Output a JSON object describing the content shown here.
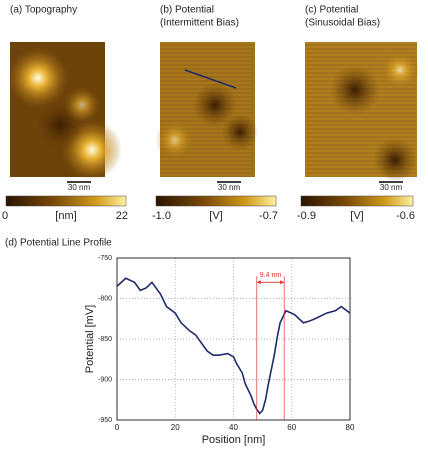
{
  "panels": [
    {
      "title": [
        "(a) Topography"
      ],
      "scale_bar": "30 nm",
      "colorbar": [
        "0",
        "[nm]",
        "22"
      ]
    },
    {
      "title": [
        "(b) Potential",
        "(Intermittent Bias)"
      ],
      "scale_bar": "30 nm",
      "colorbar": [
        "-1.0",
        "[V]",
        "-0.7"
      ]
    },
    {
      "title": [
        "(c) Potential",
        "(Sinusoidal Bias)"
      ],
      "scale_bar": "30 nm",
      "colorbar": [
        "-0.9",
        "[V]",
        "-0.6"
      ]
    }
  ],
  "chart_data": {
    "type": "line",
    "title": "(d) Potential Line Profile",
    "x_label": "Position [nm]",
    "y_label": "Potential [mV]",
    "xlim": [
      0,
      80
    ],
    "ylim": [
      -950,
      -750
    ],
    "xticks": [
      0,
      20,
      40,
      60,
      80
    ],
    "yticks": [
      -750,
      -800,
      -850,
      -900,
      -950
    ],
    "grid": true,
    "series": [
      {
        "color": "#1f2a6e",
        "x": [
          0,
          3,
          6,
          8,
          10,
          12,
          15,
          17,
          20,
          22,
          25,
          27,
          29,
          31,
          33,
          35,
          38,
          40,
          41,
          43,
          44,
          46,
          47,
          48,
          49,
          50,
          51,
          52,
          54,
          55,
          56,
          58,
          61,
          64,
          66,
          68,
          72,
          75,
          77,
          80
        ],
        "values": [
          -785,
          -775,
          -780,
          -790,
          -787,
          -780,
          -795,
          -810,
          -818,
          -830,
          -840,
          -845,
          -855,
          -865,
          -870,
          -870,
          -868,
          -872,
          -880,
          -892,
          -905,
          -920,
          -930,
          -937,
          -942,
          -938,
          -925,
          -905,
          -870,
          -848,
          -830,
          -815,
          -820,
          -830,
          -828,
          -825,
          -818,
          -815,
          -810,
          -818
        ]
      }
    ],
    "annotation": {
      "text": "9.4 nm",
      "x": [
        48,
        57.4
      ],
      "color": "#e03030"
    }
  }
}
